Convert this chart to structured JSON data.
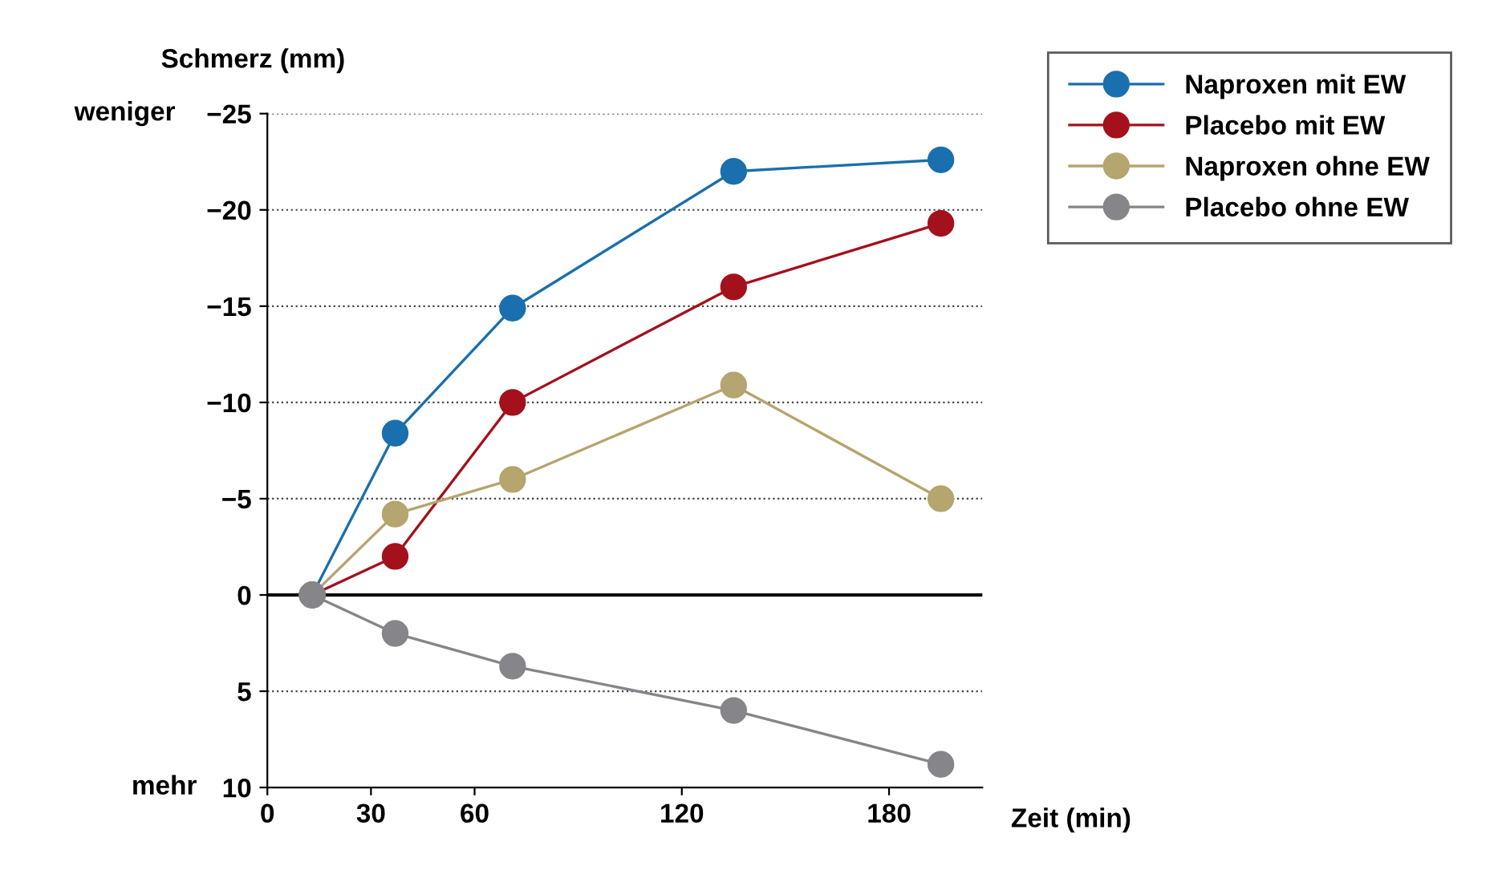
{
  "chart_data": {
    "type": "line",
    "ylabel": "Schmerz (mm)",
    "xlabel": "Zeit (min)",
    "annotations": [
      "weniger",
      "mehr"
    ],
    "x": [
      13,
      37,
      71,
      135,
      195
    ],
    "xlim": [
      0,
      207
    ],
    "xticks": [
      0,
      30,
      60,
      120,
      180
    ],
    "ylim": [
      10,
      -25
    ],
    "yticks": [
      {
        "value": -25,
        "label": "−25"
      },
      {
        "value": -20,
        "label": "−20"
      },
      {
        "value": -15,
        "label": "−15"
      },
      {
        "value": -10,
        "label": "−10"
      },
      {
        "value": -5,
        "label": "−5"
      },
      0,
      5,
      10
    ],
    "grid": "y",
    "marker": "circle",
    "line_style": "solid",
    "legend": "top right",
    "ref_lines": [
      {
        "axis": "y",
        "value": 0,
        "color": "#000000"
      }
    ],
    "series": [
      {
        "name": "Naproxen mit EW",
        "color": "#1a6fae",
        "values": [
          0,
          -8.4,
          -14.9,
          -22,
          -22.6
        ]
      },
      {
        "name": "Placebo mit EW",
        "color": "#a4111c",
        "values": [
          0,
          -2,
          -10,
          -16,
          -19.3
        ]
      },
      {
        "name": "Naproxen ohne EW",
        "color": "#b5a56e",
        "values": [
          0,
          -4.2,
          -6,
          -10.9,
          -5
        ]
      },
      {
        "name": "Placebo ohne EW",
        "color": "#85858a",
        "values": [
          0,
          2,
          3.7,
          6,
          8.8
        ]
      }
    ]
  }
}
